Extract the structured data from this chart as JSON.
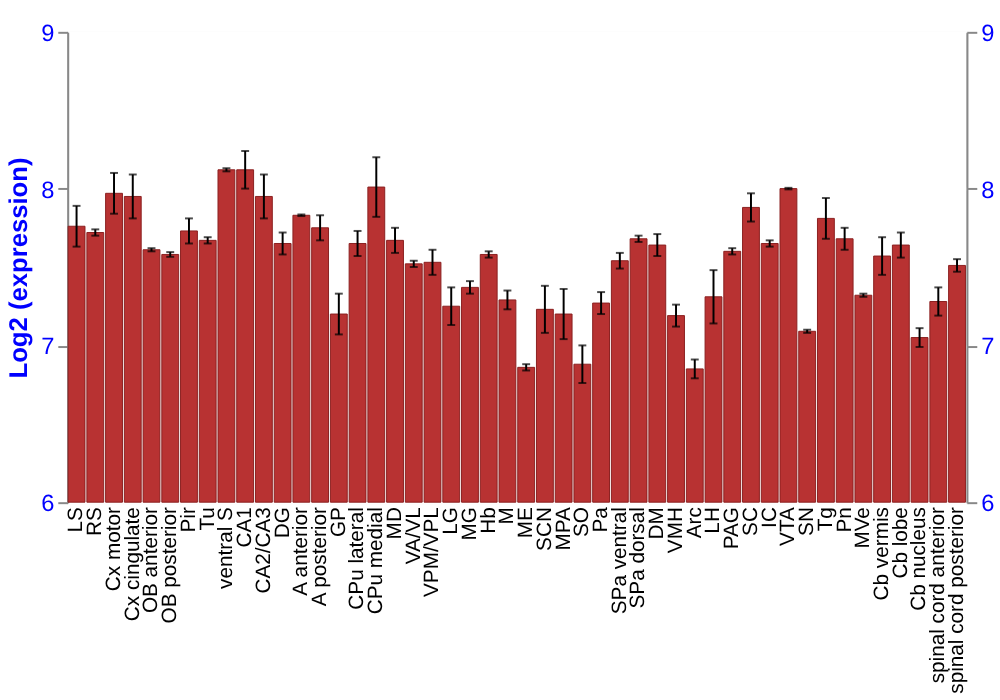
{
  "chart_data": {
    "type": "bar",
    "ylabel": "Log2 (expression)",
    "categories": [
      "LS",
      "RS",
      "Cx motor",
      "Cx cingulate",
      "OB anterior",
      "OB posterior",
      "Pir",
      "Tu",
      "ventral S",
      "CA1",
      "CA2/CA3",
      "DG",
      "A anterior",
      "A posterior",
      "GP",
      "CPu lateral",
      "CPu medial",
      "MD",
      "VA/VL",
      "VPM/VPL",
      "LG",
      "MG",
      "Hb",
      "M",
      "ME",
      "SCN",
      "MPA",
      "SO",
      "Pa",
      "SPa ventral",
      "SPa dorsal",
      "DM",
      "VMH",
      "Arc",
      "LH",
      "PAG",
      "SC",
      "IC",
      "VTA",
      "SN",
      "Tg",
      "Pn",
      "MVe",
      "Cb vermis",
      "Cb lobe",
      "Cb nucleus",
      "spinal cord anterior",
      "spinal cord posterior"
    ],
    "values": [
      7.76,
      7.72,
      7.97,
      7.95,
      7.61,
      7.58,
      7.73,
      7.67,
      8.12,
      8.12,
      7.95,
      7.65,
      7.83,
      7.75,
      7.2,
      7.65,
      8.01,
      7.67,
      7.52,
      7.53,
      7.25,
      7.37,
      7.58,
      7.29,
      6.86,
      7.23,
      7.2,
      6.88,
      7.27,
      7.54,
      7.68,
      7.64,
      7.19,
      6.85,
      7.31,
      7.6,
      7.88,
      7.65,
      8.0,
      7.09,
      7.81,
      7.68,
      7.32,
      7.57,
      7.64,
      7.05,
      7.28,
      7.51
    ],
    "errors": [
      0.13,
      0.02,
      0.13,
      0.14,
      0.01,
      0.015,
      0.08,
      0.02,
      0.01,
      0.12,
      0.14,
      0.07,
      0.005,
      0.08,
      0.13,
      0.08,
      0.19,
      0.08,
      0.02,
      0.08,
      0.12,
      0.04,
      0.02,
      0.06,
      0.02,
      0.15,
      0.16,
      0.12,
      0.07,
      0.05,
      0.02,
      0.07,
      0.07,
      0.06,
      0.17,
      0.02,
      0.09,
      0.02,
      0.005,
      0.01,
      0.13,
      0.07,
      0.01,
      0.12,
      0.08,
      0.06,
      0.09,
      0.04
    ],
    "color": "#b83232",
    "ylim": [
      6,
      9
    ],
    "yticks": [
      6,
      7,
      8,
      9
    ],
    "y2lim": [
      6,
      9
    ],
    "y2ticks": [
      6,
      7,
      8,
      9
    ],
    "grid": "y"
  }
}
